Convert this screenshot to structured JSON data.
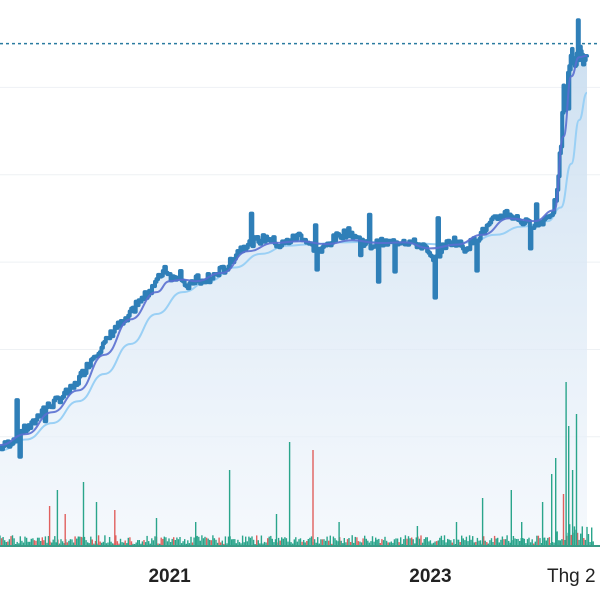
{
  "chart_data": {
    "type": "line",
    "title": "",
    "xlabel": "",
    "ylabel": "",
    "x_tick_labels": [
      {
        "label": "2021",
        "x": 2021.0
      },
      {
        "label": "2023",
        "x": 2023.0
      },
      {
        "label": "Thg 2",
        "x": 2024.08
      }
    ],
    "xlim": [
      2019.7,
      2024.3
    ],
    "ylim": [
      0,
      100
    ],
    "grid": true,
    "reference_line_value": 92,
    "colors": {
      "price_line": "#2f7fb8",
      "moving_average_1": "#5a6fd0",
      "moving_average_2": "#9ad0f5",
      "area_top": "#c7dcef",
      "area_bottom": "#eef4fb",
      "reference_line": "#2a7ba0",
      "volume_up": "#2aa58b",
      "volume_down": "#e0605e",
      "baseline": "#3a9a86"
    },
    "price_points": [
      [
        2019.7,
        18.0
      ],
      [
        2019.78,
        19.0
      ],
      [
        2019.86,
        21.0
      ],
      [
        2019.94,
        22.0
      ],
      [
        2020.02,
        25.0
      ],
      [
        2020.1,
        26.0
      ],
      [
        2020.18,
        27.5
      ],
      [
        2020.26,
        29.0
      ],
      [
        2020.34,
        32.0
      ],
      [
        2020.42,
        35.0
      ],
      [
        2020.5,
        37.0
      ],
      [
        2020.58,
        40.0
      ],
      [
        2020.66,
        41.0
      ],
      [
        2020.74,
        44.0
      ],
      [
        2020.82,
        46.0
      ],
      [
        2020.9,
        48.5
      ],
      [
        2020.96,
        51.0
      ],
      [
        2021.02,
        49.0
      ],
      [
        2021.08,
        50.0
      ],
      [
        2021.14,
        47.0
      ],
      [
        2021.2,
        49.0
      ],
      [
        2021.28,
        48.0
      ],
      [
        2021.36,
        50.0
      ],
      [
        2021.44,
        51.0
      ],
      [
        2021.52,
        54.0
      ],
      [
        2021.6,
        55.5
      ],
      [
        2021.68,
        56.0
      ],
      [
        2021.76,
        56.5
      ],
      [
        2021.84,
        55.0
      ],
      [
        2021.92,
        56.0
      ],
      [
        2022.0,
        57.0
      ],
      [
        2022.08,
        55.0
      ],
      [
        2022.16,
        54.0
      ],
      [
        2022.22,
        55.5
      ],
      [
        2022.3,
        57.0
      ],
      [
        2022.38,
        57.5
      ],
      [
        2022.46,
        56.0
      ],
      [
        2022.54,
        55.0
      ],
      [
        2022.62,
        55.5
      ],
      [
        2022.7,
        55.5
      ],
      [
        2022.78,
        56.0
      ],
      [
        2022.86,
        55.5
      ],
      [
        2022.94,
        55.0
      ],
      [
        2023.02,
        52.0
      ],
      [
        2023.1,
        55.0
      ],
      [
        2023.18,
        56.0
      ],
      [
        2023.26,
        54.5
      ],
      [
        2023.34,
        56.0
      ],
      [
        2023.42,
        58.0
      ],
      [
        2023.5,
        60.0
      ],
      [
        2023.58,
        61.0
      ],
      [
        2023.66,
        60.0
      ],
      [
        2023.74,
        59.0
      ],
      [
        2023.82,
        59.0
      ],
      [
        2023.88,
        60.0
      ],
      [
        2023.94,
        61.5
      ],
      [
        2023.98,
        66.0
      ],
      [
        2024.02,
        83.0
      ],
      [
        2024.04,
        80.0
      ],
      [
        2024.06,
        87.0
      ],
      [
        2024.08,
        90.0
      ],
      [
        2024.1,
        88.0
      ],
      [
        2024.13,
        91.0
      ],
      [
        2024.16,
        89.0
      ],
      [
        2024.2,
        89.5
      ]
    ],
    "moving_average_1": [
      [
        2019.7,
        18.5
      ],
      [
        2019.9,
        20.5
      ],
      [
        2020.1,
        24.5
      ],
      [
        2020.3,
        28.5
      ],
      [
        2020.5,
        35.0
      ],
      [
        2020.7,
        41.5
      ],
      [
        2020.9,
        46.5
      ],
      [
        2021.0,
        48.5
      ],
      [
        2021.1,
        48.8
      ],
      [
        2021.2,
        48.5
      ],
      [
        2021.4,
        50.0
      ],
      [
        2021.6,
        54.0
      ],
      [
        2021.8,
        55.5
      ],
      [
        2022.0,
        55.8
      ],
      [
        2022.2,
        55.3
      ],
      [
        2022.4,
        56.0
      ],
      [
        2022.6,
        55.5
      ],
      [
        2022.8,
        55.6
      ],
      [
        2023.0,
        54.5
      ],
      [
        2023.2,
        55.2
      ],
      [
        2023.4,
        57.0
      ],
      [
        2023.6,
        60.0
      ],
      [
        2023.8,
        59.5
      ],
      [
        2023.95,
        61.5
      ],
      [
        2024.02,
        75.0
      ],
      [
        2024.08,
        86.0
      ],
      [
        2024.14,
        89.5
      ],
      [
        2024.2,
        89.8
      ]
    ],
    "moving_average_2": [
      [
        2019.7,
        17.5
      ],
      [
        2019.9,
        19.5
      ],
      [
        2020.1,
        22.5
      ],
      [
        2020.3,
        26.5
      ],
      [
        2020.5,
        31.5
      ],
      [
        2020.7,
        37.0
      ],
      [
        2020.9,
        42.5
      ],
      [
        2021.1,
        46.5
      ],
      [
        2021.3,
        48.5
      ],
      [
        2021.5,
        51.0
      ],
      [
        2021.7,
        53.5
      ],
      [
        2021.9,
        55.0
      ],
      [
        2022.1,
        55.3
      ],
      [
        2022.3,
        55.6
      ],
      [
        2022.5,
        55.7
      ],
      [
        2022.7,
        55.6
      ],
      [
        2022.9,
        55.4
      ],
      [
        2023.1,
        55.2
      ],
      [
        2023.3,
        55.6
      ],
      [
        2023.5,
        57.0
      ],
      [
        2023.7,
        58.5
      ],
      [
        2023.9,
        59.5
      ],
      [
        2024.0,
        62.0
      ],
      [
        2024.08,
        70.0
      ],
      [
        2024.14,
        78.0
      ],
      [
        2024.2,
        83.0
      ]
    ],
    "volume_spikes": [
      {
        "x": 2020.08,
        "value": 10,
        "dir": "down"
      },
      {
        "x": 2020.14,
        "value": 14,
        "dir": "up"
      },
      {
        "x": 2020.2,
        "value": 8,
        "dir": "down"
      },
      {
        "x": 2020.34,
        "value": 16,
        "dir": "up"
      },
      {
        "x": 2020.44,
        "value": 11,
        "dir": "up"
      },
      {
        "x": 2020.58,
        "value": 9,
        "dir": "down"
      },
      {
        "x": 2020.9,
        "value": 7,
        "dir": "up"
      },
      {
        "x": 2021.2,
        "value": 6,
        "dir": "up"
      },
      {
        "x": 2021.46,
        "value": 19,
        "dir": "up"
      },
      {
        "x": 2021.82,
        "value": 8,
        "dir": "up"
      },
      {
        "x": 2021.92,
        "value": 26,
        "dir": "up"
      },
      {
        "x": 2022.1,
        "value": 24,
        "dir": "down"
      },
      {
        "x": 2022.3,
        "value": 6,
        "dir": "up"
      },
      {
        "x": 2022.9,
        "value": 5,
        "dir": "up"
      },
      {
        "x": 2023.2,
        "value": 6,
        "dir": "up"
      },
      {
        "x": 2023.4,
        "value": 12,
        "dir": "up"
      },
      {
        "x": 2023.62,
        "value": 14,
        "dir": "up"
      },
      {
        "x": 2023.7,
        "value": 6,
        "dir": "up"
      },
      {
        "x": 2023.86,
        "value": 11,
        "dir": "up"
      },
      {
        "x": 2023.93,
        "value": 18,
        "dir": "up"
      },
      {
        "x": 2023.96,
        "value": 22,
        "dir": "up"
      },
      {
        "x": 2024.02,
        "value": 13,
        "dir": "down"
      },
      {
        "x": 2024.04,
        "value": 41,
        "dir": "up"
      },
      {
        "x": 2024.06,
        "value": 30,
        "dir": "up"
      },
      {
        "x": 2024.09,
        "value": 19,
        "dir": "up"
      },
      {
        "x": 2024.12,
        "value": 33,
        "dir": "up"
      }
    ]
  }
}
